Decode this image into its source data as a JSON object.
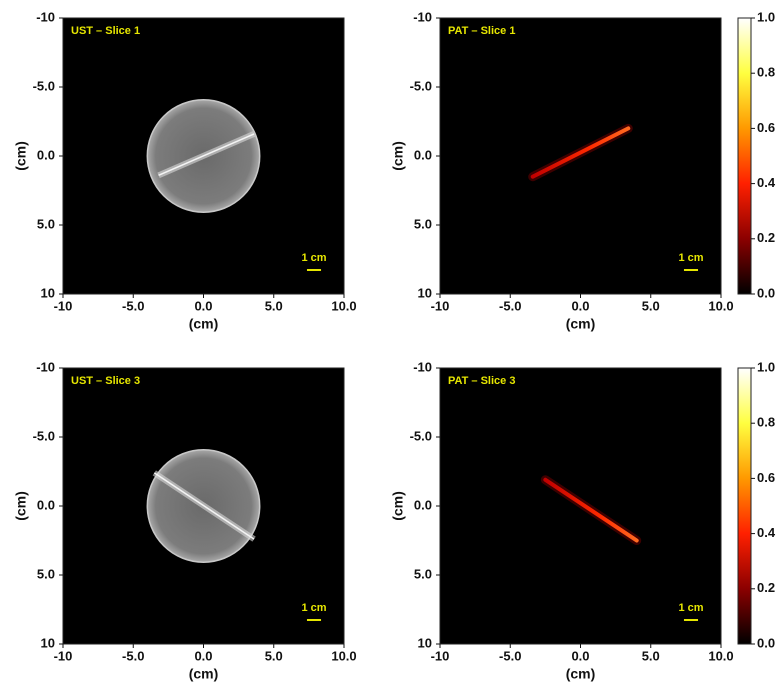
{
  "chart_data": [
    {
      "type": "image",
      "title": "UST – Slice 1",
      "xlabel": "(cm)",
      "ylabel": "(cm)",
      "xlim": [
        -10,
        10
      ],
      "ylim": [
        10,
        -10
      ],
      "xticks": [
        -10,
        {
          "value": -5,
          "label": "-5.0"
        },
        {
          "value": 0,
          "label": "0.0"
        },
        {
          "value": 5,
          "label": "5.0"
        },
        {
          "value": 10,
          "label": "10.0"
        }
      ],
      "yticks": [
        10,
        {
          "value": 5,
          "label": "5.0"
        },
        {
          "value": 0,
          "label": "0.0"
        },
        {
          "value": -5,
          "label": "-5.0"
        },
        -10
      ],
      "scale_bar": "1 cm"
    },
    {
      "type": "image",
      "title": "PAT – Slice 1",
      "xlabel": "(cm)",
      "ylabel": "(cm)",
      "xlim": [
        -10,
        10
      ],
      "ylim": [
        10,
        -10
      ],
      "xticks": [
        -10,
        {
          "value": -5,
          "label": "-5.0"
        },
        {
          "value": 0,
          "label": "0.0"
        },
        {
          "value": 5,
          "label": "5.0"
        },
        {
          "value": 10,
          "label": "10.0"
        }
      ],
      "yticks": [
        10,
        {
          "value": 5,
          "label": "5.0"
        },
        {
          "value": 0,
          "label": "0.0"
        },
        {
          "value": -5,
          "label": "-5.0"
        },
        -10
      ],
      "scale_bar": "1 cm",
      "colorbar": {
        "lim": [
          0,
          1
        ],
        "colormap": [
          "#000000",
          "#8b0000",
          "#ff2000",
          "#ff9900",
          "#ffff40",
          "#ffffff"
        ],
        "ticks": [
          {
            "value": 0,
            "label": "0.0"
          },
          {
            "value": 0.2,
            "label": "0.2"
          },
          {
            "value": 0.4,
            "label": "0.4"
          },
          {
            "value": 0.6,
            "label": "0.6"
          },
          {
            "value": 0.8,
            "label": "0.8"
          },
          {
            "value": 1,
            "label": "1.0"
          }
        ]
      }
    },
    {
      "type": "image",
      "title": "UST – Slice 3",
      "xlabel": "(cm)",
      "ylabel": "(cm)",
      "xlim": [
        -10,
        10
      ],
      "ylim": [
        10,
        -10
      ],
      "xticks": [
        -10,
        {
          "value": -5,
          "label": "-5.0"
        },
        {
          "value": 0,
          "label": "0.0"
        },
        {
          "value": 5,
          "label": "5.0"
        },
        {
          "value": 10,
          "label": "10.0"
        }
      ],
      "yticks": [
        10,
        {
          "value": 5,
          "label": "5.0"
        },
        {
          "value": 0,
          "label": "0.0"
        },
        {
          "value": -5,
          "label": "-5.0"
        },
        -10
      ],
      "scale_bar": "1 cm"
    },
    {
      "type": "image",
      "title": "PAT – Slice 3",
      "xlabel": "(cm)",
      "ylabel": "(cm)",
      "xlim": [
        -10,
        10
      ],
      "ylim": [
        10,
        -10
      ],
      "xticks": [
        -10,
        {
          "value": -5,
          "label": "-5.0"
        },
        {
          "value": 0,
          "label": "0.0"
        },
        {
          "value": 5,
          "label": "5.0"
        },
        {
          "value": 10,
          "label": "10.0"
        }
      ],
      "yticks": [
        10,
        {
          "value": 5,
          "label": "5.0"
        },
        {
          "value": 0,
          "label": "0.0"
        },
        {
          "value": -5,
          "label": "-5.0"
        },
        -10
      ],
      "scale_bar": "1 cm",
      "colorbar": {
        "lim": [
          0,
          1
        ],
        "colormap": [
          "#000000",
          "#8b0000",
          "#ff2000",
          "#ff9900",
          "#ffff40",
          "#ffffff"
        ],
        "ticks": [
          {
            "value": 0,
            "label": "0.0"
          },
          {
            "value": 0.2,
            "label": "0.2"
          },
          {
            "value": 0.4,
            "label": "0.4"
          },
          {
            "value": 0.6,
            "label": "0.6"
          },
          {
            "value": 0.8,
            "label": "0.8"
          },
          {
            "value": 1,
            "label": "1.0"
          }
        ]
      }
    }
  ]
}
